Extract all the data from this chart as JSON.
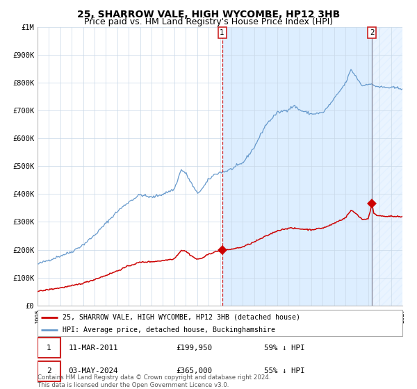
{
  "title": "25, SHARROW VALE, HIGH WYCOMBE, HP12 3HB",
  "subtitle": "Price paid vs. HM Land Registry's House Price Index (HPI)",
  "x_start_year": 1995,
  "x_end_year": 2027,
  "ylim": [
    0,
    1000000
  ],
  "yticks": [
    0,
    100000,
    200000,
    300000,
    400000,
    500000,
    600000,
    700000,
    800000,
    900000,
    1000000
  ],
  "ytick_labels": [
    "£0",
    "£100K",
    "£200K",
    "£300K",
    "£400K",
    "£500K",
    "£600K",
    "£700K",
    "£800K",
    "£900K",
    "£1M"
  ],
  "sale1_date": 2011.19,
  "sale1_price": 199950,
  "sale1_label": "1",
  "sale2_date": 2024.34,
  "sale2_price": 365000,
  "sale2_label": "2",
  "red_line_color": "#cc0000",
  "blue_line_color": "#6699cc",
  "bg_shaded_color": "#ddeeff",
  "legend_label1": "25, SHARROW VALE, HIGH WYCOMBE, HP12 3HB (detached house)",
  "legend_label2": "HPI: Average price, detached house, Buckinghamshire",
  "footer": "Contains HM Land Registry data © Crown copyright and database right 2024.\nThis data is licensed under the Open Government Licence v3.0.",
  "title_fontsize": 10,
  "subtitle_fontsize": 9,
  "tick_fontsize": 7.5
}
